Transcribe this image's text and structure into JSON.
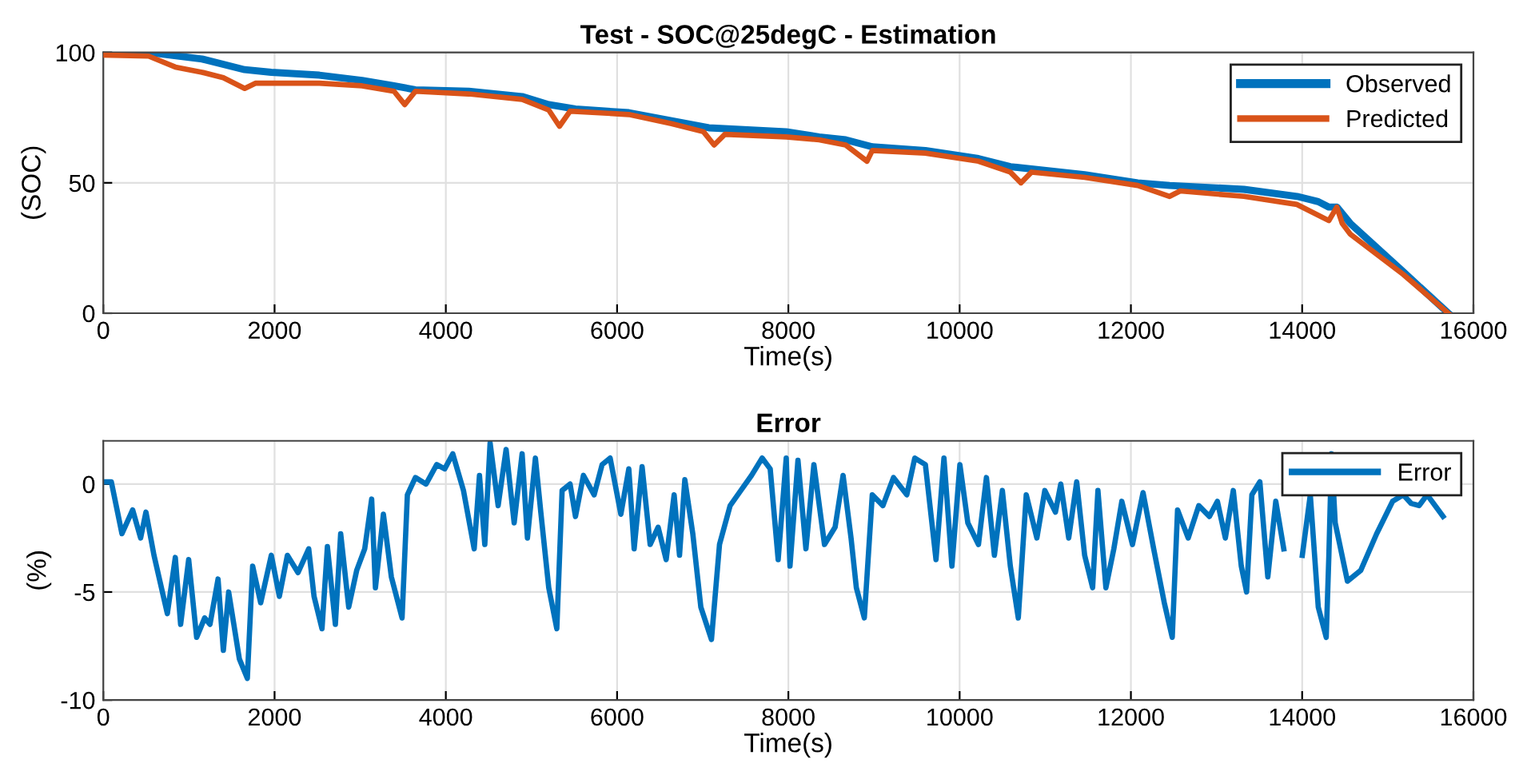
{
  "chart_data": [
    {
      "type": "line",
      "title": "Test - SOC@25degC - Estimation",
      "xlabel": "Time(s)",
      "ylabel": "(SOC)",
      "xlim": [
        0,
        16000
      ],
      "xticks": [
        0,
        2000,
        4000,
        6000,
        8000,
        10000,
        12000,
        14000,
        16000
      ],
      "ylim": [
        0,
        100
      ],
      "yticks": [
        0,
        50,
        100
      ],
      "grid": true,
      "legend": "top right",
      "marker": "none",
      "line_style": "solid",
      "series": [
        {
          "name": "Observed",
          "color": "#0072bd",
          "x": [
            0,
            530,
            1153,
            1651,
            1962,
            2523,
            3022,
            3395,
            3645,
            4268,
            4891,
            5202,
            5514,
            6137,
            6635,
            7071,
            7975,
            8360,
            8670,
            8980,
            9600,
            10220,
            10592,
            11460,
            12080,
            12452,
            13320,
            13940,
            14188,
            14312,
            14405,
            14560,
            15180,
            15707
          ],
          "values": [
            100,
            100,
            97.5,
            93.4,
            92.4,
            91.3,
            89.3,
            87.2,
            85.7,
            85.1,
            83.1,
            80,
            78.3,
            76.9,
            73.8,
            71.1,
            69.6,
            67.6,
            66.5,
            63.8,
            62.4,
            59.3,
            56.2,
            53.1,
            50,
            49,
            47.5,
            44.8,
            42.8,
            40.7,
            40.7,
            34.5,
            15.9,
            0
          ]
        },
        {
          "name": "Predicted",
          "color": "#d95319",
          "x": [
            0,
            530,
            841,
            1153,
            1402,
            1651,
            1776,
            2523,
            3022,
            3395,
            3520,
            3645,
            4268,
            4891,
            5202,
            5327,
            5451,
            6137,
            6635,
            7009,
            7133,
            7258,
            7975,
            8360,
            8670,
            8918,
            8980,
            9600,
            10220,
            10592,
            10716,
            10840,
            11460,
            12080,
            12452,
            12576,
            13320,
            13940,
            14312,
            14405,
            14467,
            14560,
            15180,
            15707
          ],
          "values": [
            99,
            98.6,
            94.4,
            92.4,
            90.3,
            86.2,
            88.2,
            88.2,
            87.2,
            85.1,
            80,
            85.1,
            84.1,
            82,
            77.9,
            71.7,
            77.5,
            76.2,
            72.7,
            69.6,
            64.5,
            68.6,
            67.6,
            66.5,
            64.5,
            58.3,
            62.4,
            61.4,
            58.3,
            54.1,
            50,
            54.1,
            52.1,
            49,
            44.8,
            46.9,
            44.8,
            41.7,
            35.5,
            40.7,
            34.5,
            30.4,
            14.9,
            0
          ]
        }
      ]
    },
    {
      "type": "line",
      "title": "Error",
      "xlabel": "Time(s)",
      "ylabel": "(%)",
      "xlim": [
        0,
        16000
      ],
      "xticks": [
        0,
        2000,
        4000,
        6000,
        8000,
        10000,
        12000,
        14000,
        16000
      ],
      "ylim": [
        -10,
        2
      ],
      "yticks": [
        {
          "value": -10,
          "label": "-10"
        },
        {
          "value": -5,
          "label": "-5"
        },
        0
      ],
      "grid": true,
      "legend": "top right",
      "marker": "none",
      "line_style": "solid",
      "series": [
        {
          "name": "Error",
          "color": "#0072bd",
          "x": [
            0,
            94,
            218,
            343,
            436,
            498,
            592,
            748,
            841,
            903,
            997,
            1090,
            1184,
            1246,
            1340,
            1402,
            1464,
            1589,
            1682,
            1744,
            1838,
            1962,
            2056,
            2150,
            2274,
            2399,
            2461,
            2554,
            2617,
            2710,
            2772,
            2866,
            2959,
            3053,
            3134,
            3178,
            3271,
            3364,
            3489,
            3551,
            3645,
            3769,
            3894,
            3987,
            4081,
            4206,
            4331,
            4393,
            4455,
            4517,
            4611,
            4704,
            4798,
            4891,
            4953,
            5046,
            5109,
            5202,
            5296,
            5358,
            5451,
            5514,
            5607,
            5732,
            5825,
            5919,
            6044,
            6137,
            6199,
            6292,
            6386,
            6479,
            6573,
            6666,
            6729,
            6791,
            6884,
            6978,
            7102,
            7196,
            7320,
            7445,
            7570,
            7694,
            7788,
            7881,
            7975,
            8019,
            8112,
            8205,
            8298,
            8422,
            8546,
            8639,
            8732,
            8794,
            8887,
            8980,
            9104,
            9228,
            9383,
            9476,
            9600,
            9724,
            9817,
            9910,
            10003,
            10096,
            10220,
            10313,
            10406,
            10499,
            10592,
            10685,
            10778,
            10902,
            10995,
            11119,
            11181,
            11274,
            11367,
            11460,
            11553,
            11615,
            11708,
            11801,
            11894,
            12018,
            12142,
            12266,
            12390,
            12483,
            12545,
            12669,
            12793,
            12917,
            13010,
            13103,
            13196,
            13289,
            13351,
            13413,
            13506,
            13599,
            13692,
            13785,
            13878,
            14002,
            14095,
            14188,
            14281,
            14312,
            14343,
            14386,
            14529,
            14684,
            14870,
            15056,
            15180,
            15273,
            15366,
            15459,
            15552,
            15645
          ],
          "values": [
            0.1,
            0.1,
            -2.3,
            -1.2,
            -2.5,
            -1.3,
            -3.3,
            -6.0,
            -3.4,
            -6.5,
            -3.5,
            -7.1,
            -6.2,
            -6.5,
            -4.4,
            -7.7,
            -5.0,
            -8.1,
            -9.0,
            -3.8,
            -5.5,
            -3.3,
            -5.2,
            -3.3,
            -4.1,
            -3.0,
            -5.2,
            -6.7,
            -2.9,
            -6.5,
            -2.3,
            -5.7,
            -4.0,
            -3.0,
            -0.7,
            -4.8,
            -1.4,
            -4.3,
            -6.2,
            -0.5,
            0.3,
            0,
            0.9,
            0.7,
            1.4,
            -0.3,
            -3.0,
            0.4,
            -2.8,
            1.9,
            -1.0,
            1.6,
            -1.8,
            1.4,
            -2.5,
            1.2,
            -1.3,
            -4.8,
            -6.7,
            -0.3,
            0,
            -1.5,
            0.4,
            -0.5,
            0.9,
            1.2,
            -1.4,
            0.7,
            -3.0,
            0.8,
            -2.8,
            -2.0,
            -3.5,
            -0.5,
            -3.3,
            0.2,
            -2.3,
            -5.7,
            -7.2,
            -2.8,
            -1.0,
            -0.3,
            0.4,
            1.2,
            0.7,
            -3.5,
            1.2,
            -3.8,
            1.1,
            -3.0,
            0.9,
            -2.8,
            -2.0,
            0.4,
            -2.5,
            -4.8,
            -6.2,
            -0.5,
            -1.0,
            0.3,
            -0.5,
            1.2,
            0.9,
            -3.5,
            1.2,
            -3.8,
            0.9,
            -1.8,
            -2.8,
            0.3,
            -3.3,
            -0.3,
            -3.8,
            -6.2,
            -0.5,
            -2.5,
            -0.3,
            -1.3,
            0,
            -2.5,
            0.1,
            -3.3,
            -4.8,
            -0.3,
            -4.8,
            -3.0,
            -0.8,
            -2.8,
            -0.4,
            -3.0,
            -5.5,
            -7.1,
            -1.2,
            -2.5,
            -1.0,
            -1.5,
            -0.8,
            -2.5,
            -0.3,
            -3.8,
            -5.0,
            -0.5,
            0.1,
            -4.3,
            -0.8,
            -3.0,
            null,
            -3.3,
            -0.5,
            -5.7,
            -7.1,
            -3.3,
            1.4,
            -1.8,
            -4.5,
            -4.0,
            -2.3,
            -0.8,
            -0.5,
            -0.9,
            -1.0,
            -0.5,
            -1.0,
            -1.5
          ]
        }
      ]
    }
  ]
}
